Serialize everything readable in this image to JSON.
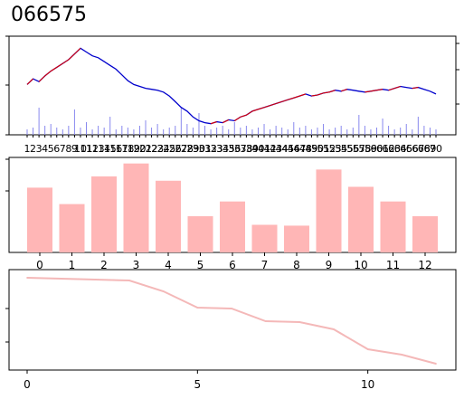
{
  "title": "066575",
  "colors": {
    "price": "#0000cc",
    "price_up": "#dd0000",
    "volume": "#8888ee",
    "bar": "#ffb6b6",
    "line": "#f4b8b8",
    "axis": "#000000"
  },
  "chart_data": [
    {
      "type": "line",
      "title": "066575",
      "x_tick_labels": [
        "1",
        "2",
        "3",
        "4",
        "5",
        "6",
        "7",
        "8",
        "9",
        "10",
        "11",
        "12",
        "13",
        "14",
        "15",
        "16",
        "17",
        "18",
        "19",
        "20",
        "21",
        "22",
        "23",
        "24",
        "25",
        "26",
        "27",
        "28",
        "29",
        "30",
        "31",
        "32",
        "33",
        "34",
        "35",
        "36",
        "37",
        "38",
        "39",
        "40",
        "41",
        "42",
        "43",
        "44",
        "45",
        "46",
        "47",
        "48",
        "49",
        "50",
        "51",
        "52",
        "53",
        "54",
        "55",
        "56",
        "57",
        "58",
        "59",
        "60",
        "61",
        "62",
        "63",
        "64",
        "65",
        "66",
        "67",
        "68",
        "69",
        "70"
      ],
      "series": [
        {
          "values": [
            52,
            58,
            55,
            61,
            66,
            70,
            74,
            78,
            84,
            90,
            86,
            82,
            80,
            76,
            72,
            68,
            62,
            56,
            52,
            50,
            48,
            47,
            46,
            44,
            40,
            34,
            28,
            24,
            18,
            14,
            12,
            11,
            13,
            12,
            15,
            14,
            18,
            20,
            24,
            26,
            28,
            30,
            32,
            34,
            36,
            38,
            40,
            42,
            40,
            41,
            43,
            44,
            46,
            45,
            47,
            46,
            45,
            44,
            45,
            46,
            47,
            46,
            48,
            50,
            49,
            48,
            49,
            47,
            45,
            42
          ]
        }
      ],
      "volume": [
        6,
        8,
        30,
        10,
        12,
        8,
        6,
        10,
        28,
        8,
        14,
        6,
        10,
        8,
        20,
        6,
        10,
        8,
        6,
        10,
        16,
        8,
        12,
        6,
        8,
        10,
        30,
        12,
        8,
        24,
        10,
        6,
        8,
        10,
        6,
        14,
        8,
        10,
        6,
        8,
        12,
        6,
        10,
        8,
        6,
        14,
        8,
        10,
        6,
        8,
        12,
        6,
        8,
        10,
        6,
        8,
        22,
        10,
        6,
        8,
        18,
        10,
        6,
        8,
        12,
        6,
        20,
        10,
        8,
        6
      ]
    },
    {
      "type": "bar",
      "categories": [
        "0",
        "1",
        "2",
        "3",
        "4",
        "5",
        "6",
        "7",
        "8",
        "9",
        "10",
        "11",
        "12"
      ],
      "values": [
        75,
        56,
        88,
        103,
        83,
        42,
        59,
        32,
        31,
        96,
        76,
        59,
        42
      ],
      "ylim": [
        0,
        110
      ]
    },
    {
      "type": "line",
      "x": [
        0,
        1,
        2,
        3,
        4,
        5,
        6,
        7,
        8,
        9,
        10,
        11,
        12
      ],
      "x_tick_labels": [
        "0",
        "5",
        "10"
      ],
      "x_ticks": [
        0,
        5,
        10
      ],
      "values": [
        100,
        99,
        98,
        97,
        85,
        67,
        66,
        52,
        51,
        43,
        21,
        15,
        5
      ],
      "ylim": [
        0,
        105
      ]
    }
  ]
}
